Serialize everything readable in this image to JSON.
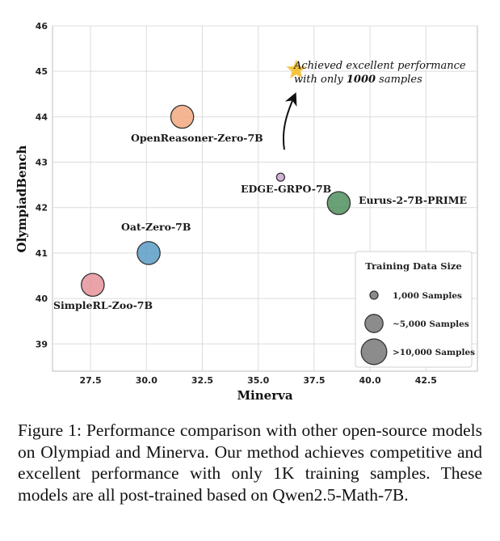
{
  "chart_data": {
    "type": "scatter",
    "xlabel": "Minerva",
    "ylabel": "OlympiadBench",
    "xlim": [
      25.8,
      44.8
    ],
    "ylim": [
      38.4,
      46
    ],
    "xticks": [
      27.5,
      30.0,
      32.5,
      35.0,
      37.5,
      40.0,
      42.5
    ],
    "xtick_labels": [
      "27.5",
      "30.0",
      "32.5",
      "35.0",
      "37.5",
      "40.0",
      "42.5"
    ],
    "yticks": [
      39,
      40,
      41,
      42,
      43,
      44,
      45,
      46
    ],
    "ytick_labels": [
      "39",
      "40",
      "41",
      "42",
      "43",
      "44",
      "45",
      "46"
    ],
    "grid": true,
    "points": [
      {
        "name": "SimpleRL-Zoo-7B",
        "x": 27.6,
        "y": 40.3,
        "samples": 8000,
        "color": "#e8939b"
      },
      {
        "name": "Oat-Zero-7B",
        "x": 30.1,
        "y": 41.0,
        "samples": 8000,
        "color": "#5b9cc6"
      },
      {
        "name": "OpenReasoner-Zero-7B",
        "x": 31.6,
        "y": 44.0,
        "samples": 8000,
        "color": "#f2a97f"
      },
      {
        "name": "EDGE-GRPO-7B",
        "x": 36.0,
        "y": 42.67,
        "samples": 1000,
        "color": "#c9a6cf"
      },
      {
        "name": "Eurus-2-7B-PRIME",
        "x": 38.6,
        "y": 42.1,
        "samples": 8000,
        "color": "#4f8f5d"
      }
    ],
    "annotation": {
      "line1": "Achieved excellent performance",
      "line2_prefix": "with only ",
      "line2_bold": "1000",
      "line2_suffix": " samples",
      "star_x": 36.7,
      "star_y": 45.03,
      "star_color": "#f5c23a"
    },
    "legend": {
      "title": "Training Data Size",
      "position": "bottom-right",
      "entries": [
        {
          "label": "1,000 Samples",
          "samples": 1000
        },
        {
          "label": "~5,000 Samples",
          "samples": 5000
        },
        {
          "label": ">10,000 Samples",
          "samples": 10000
        }
      ],
      "marker_color": "#8c8c8c"
    }
  },
  "caption": "Figure 1: Performance comparison with other open-source models on Olympiad and Minerva. Our method achieves competitive and excellent performance with only 1K training samples. These models are all post-trained based on Qwen2.5-Math-7B."
}
